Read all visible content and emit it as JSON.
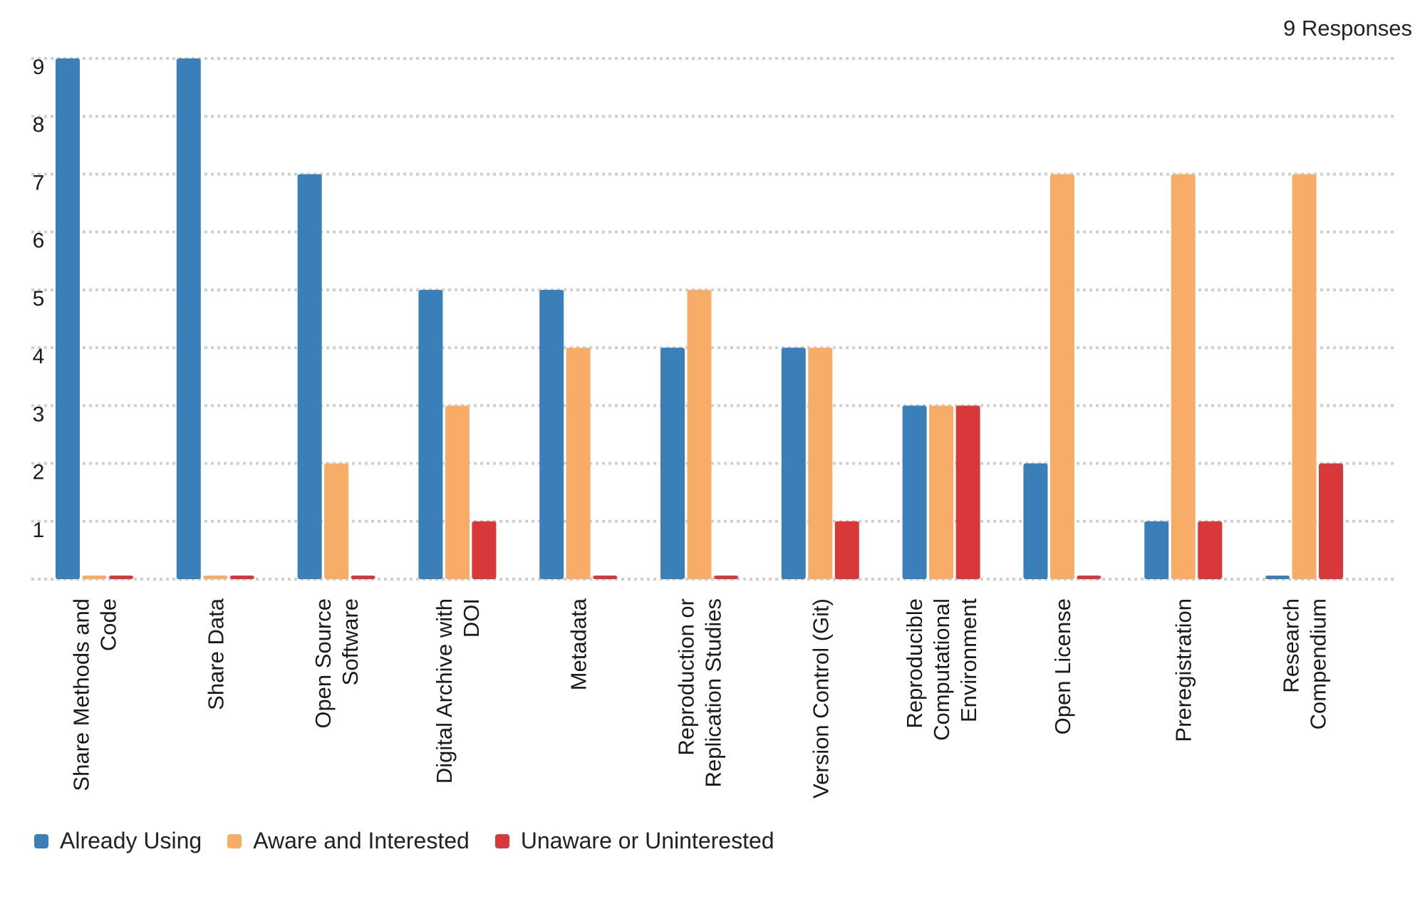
{
  "header": {
    "responses_label": "9 Responses"
  },
  "colors": {
    "already_using": "#3a7fb8",
    "aware_interested": "#f7ad68",
    "unaware_uninterested": "#d9383b",
    "grid": "#cfcfcf"
  },
  "chart_data": {
    "type": "bar",
    "title": "",
    "xlabel": "",
    "ylabel": "",
    "ylim": [
      0,
      9
    ],
    "y_ticks": [
      1,
      2,
      3,
      4,
      5,
      6,
      7,
      8,
      9
    ],
    "grid": true,
    "legend_position": "bottom-left",
    "categories": [
      [
        "Share Methods and",
        "Code"
      ],
      [
        "Share Data"
      ],
      [
        "Open Source",
        "Software"
      ],
      [
        "Digital Archive with",
        "DOI"
      ],
      [
        "Metadata"
      ],
      [
        "Reproduction or",
        "Replication Studies"
      ],
      [
        "Version Control (Git)"
      ],
      [
        "Reproducible",
        "Computational",
        "Environment"
      ],
      [
        "Open License"
      ],
      [
        "Preregistration"
      ],
      [
        "Research",
        "Compendium"
      ]
    ],
    "series": [
      {
        "name": "Already Using",
        "color": "#3a7fb8",
        "values": [
          9,
          9,
          7,
          5,
          5,
          4,
          4,
          3,
          2,
          1,
          0
        ]
      },
      {
        "name": "Aware and Interested",
        "color": "#f7ad68",
        "values": [
          0,
          0,
          2,
          3,
          4,
          5,
          4,
          3,
          7,
          7,
          7
        ]
      },
      {
        "name": "Unaware or Uninterested",
        "color": "#d9383b",
        "values": [
          0,
          0,
          0,
          1,
          0,
          0,
          1,
          3,
          0,
          1,
          2
        ]
      }
    ]
  }
}
